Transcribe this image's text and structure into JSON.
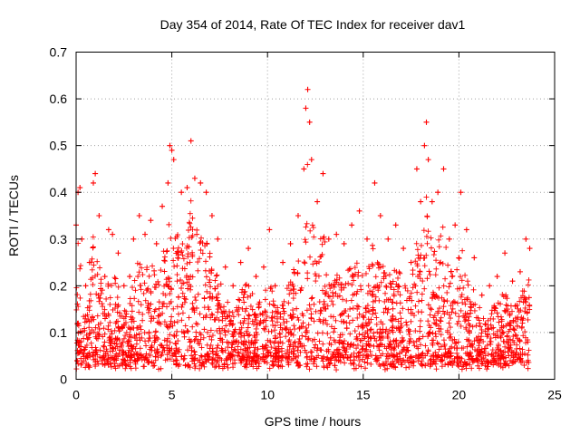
{
  "chart_data": {
    "type": "scatter",
    "title": "Day 354 of 2014, Rate Of TEC Index for receiver dav1",
    "xlabel": "GPS time / hours",
    "ylabel": "ROTI / TECUs",
    "xlim": [
      0,
      25
    ],
    "ylim": [
      0,
      0.7
    ],
    "xticks": [
      0,
      5,
      10,
      15,
      20,
      25
    ],
    "yticks": [
      0,
      0.1,
      0.2,
      0.3,
      0.4,
      0.5,
      0.6,
      0.7
    ],
    "xtick_labels": [
      "0",
      "5",
      "10",
      "15",
      "20",
      "25"
    ],
    "ytick_labels": [
      "0",
      "0.1",
      "0.2",
      "0.3",
      "0.4",
      "0.5",
      "0.6",
      "0.7"
    ],
    "grid": true,
    "marker": "+",
    "color": "#ff0000",
    "points": [
      [
        0.0,
        0.33
      ],
      [
        0.1,
        0.4
      ],
      [
        0.2,
        0.41
      ],
      [
        0.3,
        0.3
      ],
      [
        0.5,
        0.2
      ],
      [
        0.7,
        0.25
      ],
      [
        0.9,
        0.42
      ],
      [
        1.0,
        0.44
      ],
      [
        1.2,
        0.35
      ],
      [
        1.5,
        0.22
      ],
      [
        1.7,
        0.32
      ],
      [
        1.9,
        0.31
      ],
      [
        2.2,
        0.27
      ],
      [
        2.5,
        0.2
      ],
      [
        2.8,
        0.22
      ],
      [
        3.0,
        0.3
      ],
      [
        3.3,
        0.35
      ],
      [
        3.6,
        0.31
      ],
      [
        3.9,
        0.34
      ],
      [
        4.2,
        0.29
      ],
      [
        4.5,
        0.37
      ],
      [
        4.8,
        0.42
      ],
      [
        4.9,
        0.5
      ],
      [
        5.0,
        0.49
      ],
      [
        5.1,
        0.47
      ],
      [
        5.5,
        0.4
      ],
      [
        5.8,
        0.41
      ],
      [
        6.0,
        0.51
      ],
      [
        6.2,
        0.43
      ],
      [
        6.5,
        0.42
      ],
      [
        6.8,
        0.4
      ],
      [
        7.1,
        0.35
      ],
      [
        7.4,
        0.3
      ],
      [
        7.8,
        0.24
      ],
      [
        8.2,
        0.2
      ],
      [
        8.6,
        0.25
      ],
      [
        9.0,
        0.28
      ],
      [
        9.4,
        0.22
      ],
      [
        9.8,
        0.24
      ],
      [
        10.1,
        0.32
      ],
      [
        10.4,
        0.2
      ],
      [
        10.8,
        0.25
      ],
      [
        11.2,
        0.29
      ],
      [
        11.6,
        0.35
      ],
      [
        11.9,
        0.45
      ],
      [
        12.0,
        0.58
      ],
      [
        12.1,
        0.62
      ],
      [
        12.2,
        0.55
      ],
      [
        12.3,
        0.47
      ],
      [
        12.6,
        0.38
      ],
      [
        12.9,
        0.44
      ],
      [
        13.2,
        0.3
      ],
      [
        13.6,
        0.31
      ],
      [
        14.0,
        0.29
      ],
      [
        14.4,
        0.33
      ],
      [
        14.8,
        0.36
      ],
      [
        15.2,
        0.3
      ],
      [
        15.6,
        0.42
      ],
      [
        15.9,
        0.35
      ],
      [
        16.3,
        0.3
      ],
      [
        16.7,
        0.33
      ],
      [
        17.1,
        0.28
      ],
      [
        17.5,
        0.25
      ],
      [
        17.8,
        0.45
      ],
      [
        18.0,
        0.38
      ],
      [
        18.2,
        0.5
      ],
      [
        18.3,
        0.55
      ],
      [
        18.4,
        0.47
      ],
      [
        18.6,
        0.38
      ],
      [
        18.9,
        0.4
      ],
      [
        19.2,
        0.45
      ],
      [
        19.5,
        0.3
      ],
      [
        19.8,
        0.33
      ],
      [
        20.1,
        0.4
      ],
      [
        20.4,
        0.32
      ],
      [
        20.8,
        0.26
      ],
      [
        21.2,
        0.18
      ],
      [
        21.6,
        0.2
      ],
      [
        22.0,
        0.22
      ],
      [
        22.4,
        0.27
      ],
      [
        22.8,
        0.21
      ],
      [
        23.2,
        0.23
      ],
      [
        23.5,
        0.3
      ],
      [
        23.7,
        0.28
      ]
    ]
  }
}
